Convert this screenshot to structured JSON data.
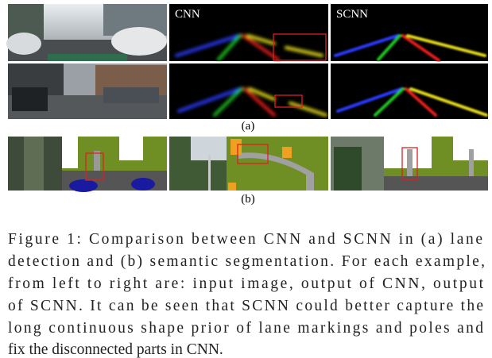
{
  "figure": {
    "panel_labels": {
      "cnn": "CNN",
      "scnn": "SCNN"
    },
    "subfigure_labels": [
      "(a)",
      "(b)"
    ]
  },
  "caption": {
    "lines": [
      "Figure 1: Comparison between CNN and SCNN in (a) lane",
      "detection and (b) semantic segmentation. For each example,",
      "from left to right are: input image, output of CNN, output",
      "of SCNN. It can be seen that SCNN could better capture the",
      "long continuous shape prior of lane markings and poles and",
      "fix the disconnected parts in CNN."
    ]
  }
}
